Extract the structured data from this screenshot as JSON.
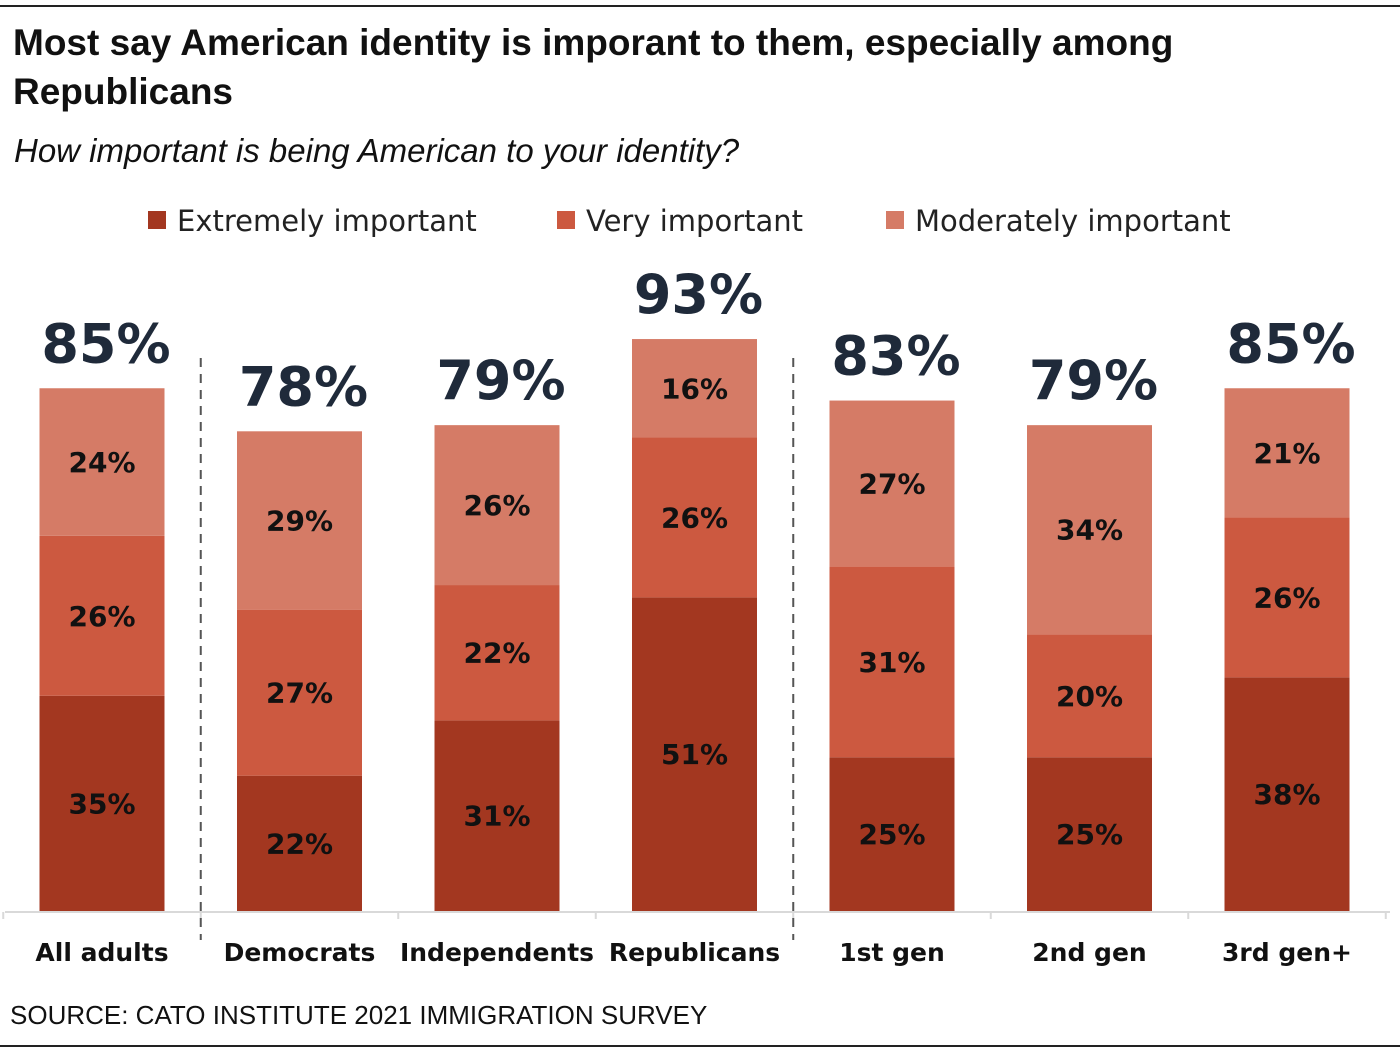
{
  "title": "Most say American identity is imporant to them, especially among Republicans",
  "subtitle": "How important is being American to your identity?",
  "source": "SOURCE: CATO INSTITUTE 2021 IMMIGRATION SURVEY",
  "chart_data": {
    "type": "bar",
    "stacked": true,
    "title": "Most say American identity is imporant to them, especially among Republicans",
    "subtitle": "How important is being American to your identity?",
    "categories": [
      "All adults",
      "Democrats",
      "Independents",
      "Republicans",
      "1st gen",
      "2nd gen",
      "3rd gen+"
    ],
    "totals": [
      "85%",
      "78%",
      "79%",
      "93%",
      "83%",
      "79%",
      "85%"
    ],
    "series": [
      {
        "name": "Extremely important",
        "color": "#A33720",
        "values": [
          35,
          22,
          31,
          51,
          25,
          25,
          38
        ]
      },
      {
        "name": "Very important",
        "color": "#CC5940",
        "values": [
          26,
          27,
          22,
          26,
          31,
          20,
          26
        ]
      },
      {
        "name": "Moderately important",
        "color": "#D57B66",
        "values": [
          24,
          29,
          26,
          16,
          27,
          34,
          21
        ]
      }
    ],
    "group_dividers_after": [
      "All adults",
      "Republicans"
    ],
    "legend_position": "top",
    "grid": false,
    "ylim": [
      0,
      100
    ]
  }
}
